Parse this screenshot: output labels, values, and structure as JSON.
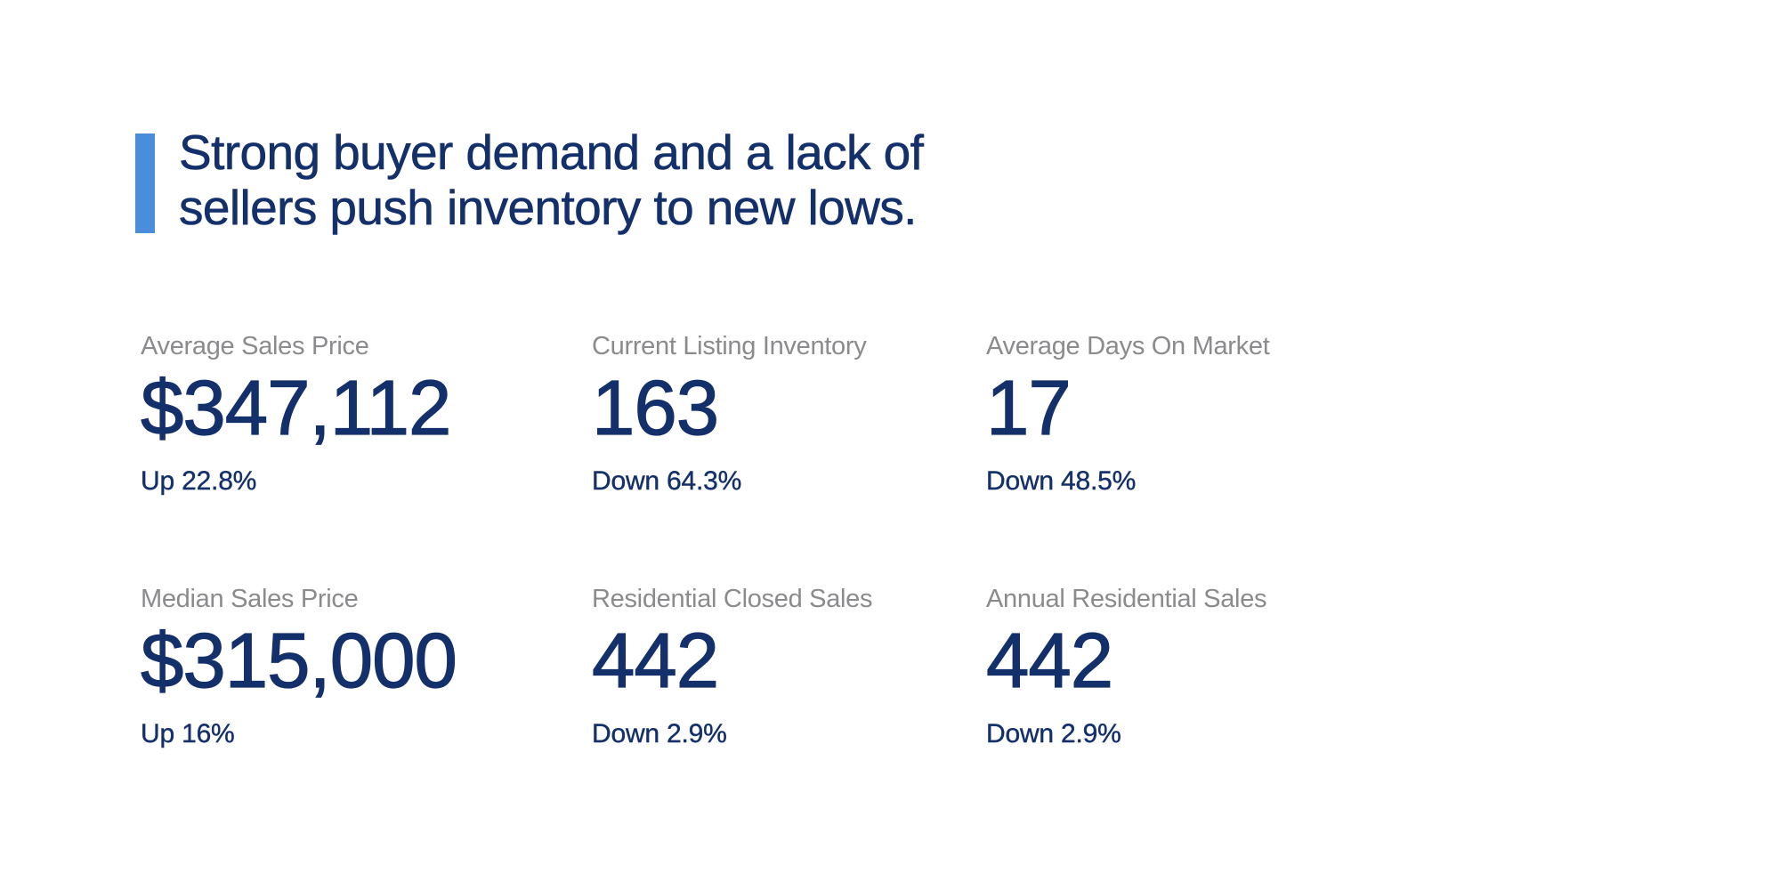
{
  "colors": {
    "background": "#ffffff",
    "accent_bar_blue": "#4A8EDB",
    "navy_text": "#14306B",
    "label_gray": "#8B8B8E"
  },
  "headline": {
    "line1": "Strong buyer demand and a lack of",
    "line2": "sellers push inventory to new lows."
  },
  "stats": [
    {
      "label": "Average Sales Price",
      "value": "$347,112",
      "change": "Up 22.8%"
    },
    {
      "label": "Current Listing Inventory",
      "value": "163",
      "change": "Down 64.3%"
    },
    {
      "label": "Average Days On Market",
      "value": "17",
      "change": "Down 48.5%"
    },
    {
      "label": "Median Sales Price",
      "value": "$315,000",
      "change": "Up 16%"
    },
    {
      "label": "Residential Closed Sales",
      "value": "442",
      "change": "Down 2.9%"
    },
    {
      "label": "Annual Residential Sales",
      "value": "442",
      "change": "Down 2.9%"
    }
  ]
}
